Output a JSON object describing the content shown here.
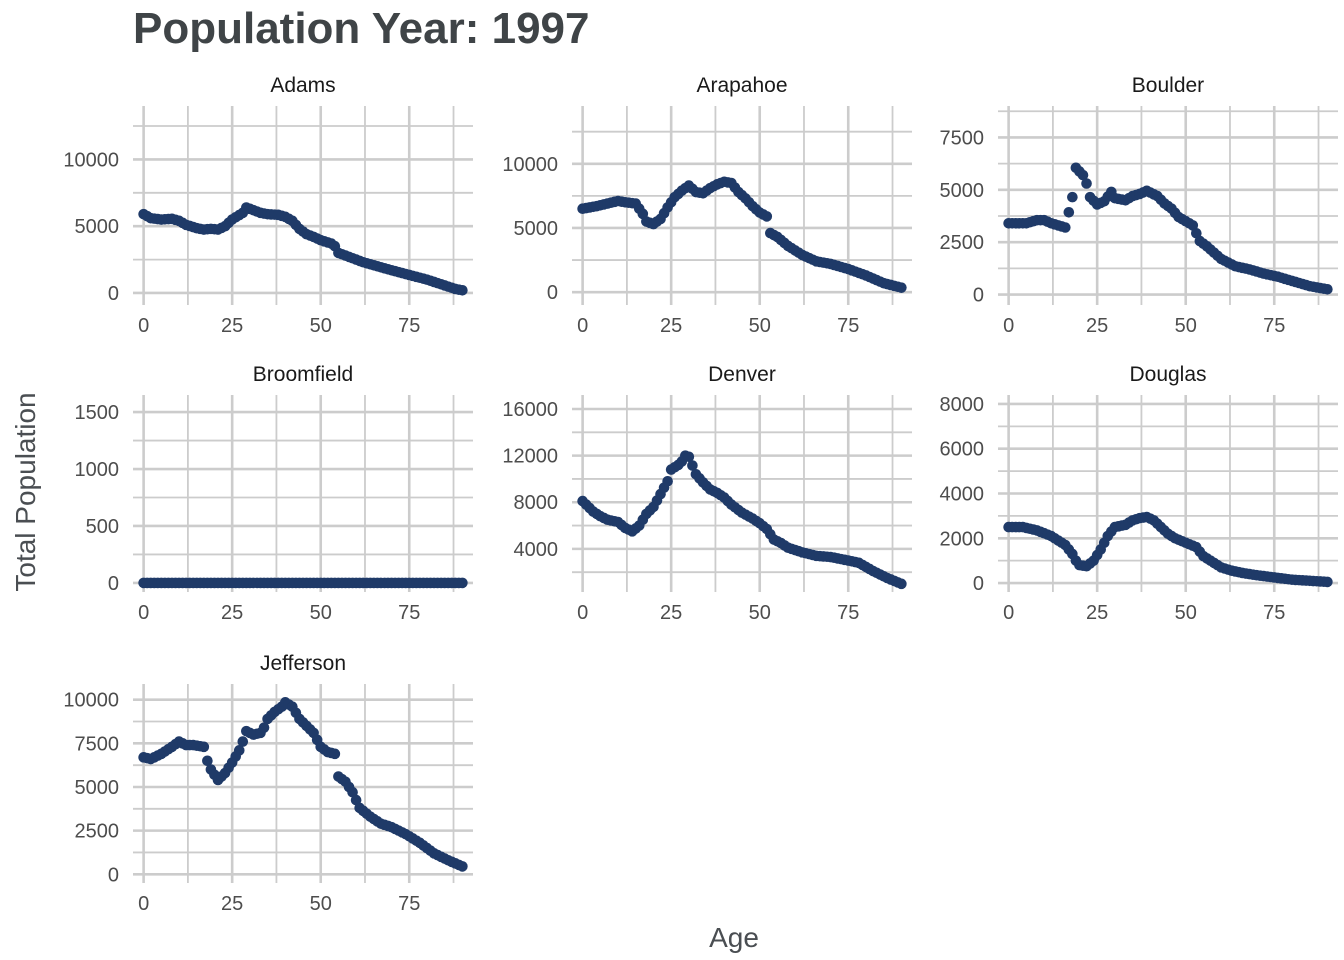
{
  "chart_data": {
    "type": "scatter",
    "title": "Population Year:  1997",
    "xlabel": "Age",
    "ylabel": "Total Population",
    "point_color": "#1f3a68",
    "grid_color": "#cccccc",
    "x_ticks": [
      "0",
      "25",
      "50",
      "75"
    ],
    "xlim": [
      -3,
      93
    ],
    "panels": [
      {
        "name": "Adams",
        "ylim": [
          -900,
          14000
        ],
        "y_ticks": [
          0,
          5000,
          10000
        ],
        "y_tick_labels": [
          "0",
          "5000",
          "10000"
        ],
        "keypoints": [
          [
            0,
            5900
          ],
          [
            2,
            5600
          ],
          [
            5,
            5500
          ],
          [
            8,
            5550
          ],
          [
            10,
            5400
          ],
          [
            12,
            5100
          ],
          [
            15,
            4850
          ],
          [
            17,
            4750
          ],
          [
            19,
            4800
          ],
          [
            21,
            4750
          ],
          [
            23,
            5000
          ],
          [
            25,
            5500
          ],
          [
            28,
            6000
          ],
          [
            29,
            6400
          ],
          [
            31,
            6200
          ],
          [
            33,
            6000
          ],
          [
            35,
            5900
          ],
          [
            38,
            5850
          ],
          [
            40,
            5700
          ],
          [
            42,
            5400
          ],
          [
            44,
            4800
          ],
          [
            46,
            4400
          ],
          [
            48,
            4200
          ],
          [
            50,
            3950
          ],
          [
            53,
            3700
          ],
          [
            54,
            3500
          ],
          [
            55,
            3000
          ],
          [
            58,
            2700
          ],
          [
            62,
            2300
          ],
          [
            66,
            2000
          ],
          [
            70,
            1700
          ],
          [
            75,
            1350
          ],
          [
            80,
            1000
          ],
          [
            84,
            650
          ],
          [
            88,
            300
          ],
          [
            90,
            200
          ]
        ]
      },
      {
        "name": "Arapahoe",
        "ylim": [
          -1000,
          14500
        ],
        "y_ticks": [
          0,
          5000,
          10000
        ],
        "y_tick_labels": [
          "0",
          "5000",
          "10000"
        ],
        "keypoints": [
          [
            0,
            6500
          ],
          [
            4,
            6700
          ],
          [
            7,
            6900
          ],
          [
            10,
            7100
          ],
          [
            12,
            7000
          ],
          [
            15,
            6900
          ],
          [
            16,
            6500
          ],
          [
            17,
            6100
          ],
          [
            18,
            5500
          ],
          [
            20,
            5300
          ],
          [
            22,
            5700
          ],
          [
            24,
            6600
          ],
          [
            26,
            7400
          ],
          [
            28,
            7900
          ],
          [
            30,
            8300
          ],
          [
            32,
            7800
          ],
          [
            34,
            7700
          ],
          [
            36,
            8100
          ],
          [
            38,
            8400
          ],
          [
            40,
            8600
          ],
          [
            42,
            8500
          ],
          [
            44,
            7800
          ],
          [
            46,
            7300
          ],
          [
            48,
            6700
          ],
          [
            50,
            6200
          ],
          [
            52,
            5900
          ],
          [
            53,
            4600
          ],
          [
            55,
            4300
          ],
          [
            58,
            3600
          ],
          [
            62,
            2900
          ],
          [
            66,
            2400
          ],
          [
            70,
            2200
          ],
          [
            75,
            1800
          ],
          [
            80,
            1300
          ],
          [
            85,
            700
          ],
          [
            90,
            350
          ]
        ]
      },
      {
        "name": "Boulder",
        "ylim": [
          -500,
          9000
        ],
        "y_ticks": [
          0,
          2500,
          5000,
          7500
        ],
        "y_tick_labels": [
          "0",
          "2500",
          "5000",
          "7500"
        ],
        "keypoints": [
          [
            0,
            3400
          ],
          [
            5,
            3400
          ],
          [
            8,
            3550
          ],
          [
            10,
            3550
          ],
          [
            12,
            3400
          ],
          [
            14,
            3300
          ],
          [
            16,
            3200
          ],
          [
            18,
            4650
          ],
          [
            19,
            6050
          ],
          [
            21,
            5700
          ],
          [
            22,
            5300
          ],
          [
            23,
            4650
          ],
          [
            25,
            4300
          ],
          [
            27,
            4450
          ],
          [
            29,
            4900
          ],
          [
            30,
            4600
          ],
          [
            33,
            4500
          ],
          [
            35,
            4700
          ],
          [
            37,
            4800
          ],
          [
            39,
            4950
          ],
          [
            42,
            4700
          ],
          [
            44,
            4350
          ],
          [
            46,
            4100
          ],
          [
            48,
            3700
          ],
          [
            50,
            3500
          ],
          [
            52,
            3300
          ],
          [
            54,
            2550
          ],
          [
            56,
            2300
          ],
          [
            58,
            2000
          ],
          [
            60,
            1700
          ],
          [
            64,
            1350
          ],
          [
            68,
            1200
          ],
          [
            72,
            1000
          ],
          [
            76,
            850
          ],
          [
            80,
            650
          ],
          [
            85,
            400
          ],
          [
            90,
            250
          ]
        ]
      },
      {
        "name": "Broomfield",
        "ylim": [
          -80,
          1650
        ],
        "y_ticks": [
          0,
          500,
          1000,
          1500
        ],
        "y_tick_labels": [
          "0",
          "500",
          "1000",
          "1500"
        ],
        "keypoints": [
          [
            0,
            0
          ],
          [
            90,
            0
          ]
        ]
      },
      {
        "name": "Denver",
        "ylim": [
          300,
          17200
        ],
        "y_ticks": [
          4000,
          8000,
          12000,
          16000
        ],
        "y_tick_labels": [
          "4000",
          "8000",
          "12000",
          "16000"
        ],
        "keypoints": [
          [
            0,
            8100
          ],
          [
            3,
            7200
          ],
          [
            5,
            6800
          ],
          [
            7,
            6500
          ],
          [
            10,
            6300
          ],
          [
            12,
            5800
          ],
          [
            14,
            5500
          ],
          [
            16,
            6000
          ],
          [
            18,
            7000
          ],
          [
            20,
            7600
          ],
          [
            22,
            8700
          ],
          [
            24,
            9800
          ],
          [
            25,
            10800
          ],
          [
            27,
            11200
          ],
          [
            28,
            11500
          ],
          [
            29,
            12000
          ],
          [
            30,
            11900
          ],
          [
            32,
            10400
          ],
          [
            34,
            9700
          ],
          [
            36,
            9100
          ],
          [
            38,
            8800
          ],
          [
            40,
            8400
          ],
          [
            42,
            7800
          ],
          [
            45,
            7100
          ],
          [
            48,
            6600
          ],
          [
            50,
            6200
          ],
          [
            52,
            5700
          ],
          [
            54,
            4800
          ],
          [
            56,
            4500
          ],
          [
            58,
            4100
          ],
          [
            62,
            3700
          ],
          [
            66,
            3400
          ],
          [
            70,
            3300
          ],
          [
            75,
            3000
          ],
          [
            78,
            2800
          ],
          [
            82,
            2100
          ],
          [
            86,
            1500
          ],
          [
            90,
            1000
          ]
        ]
      },
      {
        "name": "Douglas",
        "ylim": [
          -400,
          8400
        ],
        "y_ticks": [
          0,
          2000,
          4000,
          6000,
          8000
        ],
        "y_tick_labels": [
          "0",
          "2000",
          "4000",
          "6000",
          "8000"
        ],
        "keypoints": [
          [
            0,
            2500
          ],
          [
            4,
            2500
          ],
          [
            8,
            2350
          ],
          [
            12,
            2100
          ],
          [
            16,
            1700
          ],
          [
            18,
            1300
          ],
          [
            19,
            1000
          ],
          [
            20,
            800
          ],
          [
            22,
            750
          ],
          [
            24,
            1000
          ],
          [
            26,
            1500
          ],
          [
            28,
            2100
          ],
          [
            30,
            2500
          ],
          [
            33,
            2600
          ],
          [
            35,
            2800
          ],
          [
            37,
            2900
          ],
          [
            39,
            2950
          ],
          [
            41,
            2800
          ],
          [
            43,
            2500
          ],
          [
            45,
            2200
          ],
          [
            47,
            2000
          ],
          [
            50,
            1800
          ],
          [
            53,
            1600
          ],
          [
            55,
            1200
          ],
          [
            57,
            1000
          ],
          [
            60,
            700
          ],
          [
            63,
            550
          ],
          [
            66,
            450
          ],
          [
            70,
            350
          ],
          [
            75,
            250
          ],
          [
            80,
            150
          ],
          [
            85,
            100
          ],
          [
            90,
            50
          ]
        ]
      },
      {
        "name": "Jefferson",
        "ylim": [
          -500,
          10900
        ],
        "y_ticks": [
          0,
          2500,
          5000,
          7500,
          10000
        ],
        "y_tick_labels": [
          "0",
          "2500",
          "5000",
          "7500",
          "10000"
        ],
        "keypoints": [
          [
            0,
            6700
          ],
          [
            2,
            6600
          ],
          [
            5,
            6900
          ],
          [
            8,
            7300
          ],
          [
            10,
            7600
          ],
          [
            12,
            7400
          ],
          [
            14,
            7400
          ],
          [
            17,
            7300
          ],
          [
            18,
            6500
          ],
          [
            19,
            6000
          ],
          [
            20,
            5700
          ],
          [
            21,
            5400
          ],
          [
            23,
            5800
          ],
          [
            25,
            6400
          ],
          [
            27,
            7100
          ],
          [
            28,
            7600
          ],
          [
            29,
            8200
          ],
          [
            31,
            8000
          ],
          [
            33,
            8100
          ],
          [
            34,
            8400
          ],
          [
            35,
            8900
          ],
          [
            37,
            9300
          ],
          [
            39,
            9600
          ],
          [
            40,
            9850
          ],
          [
            42,
            9600
          ],
          [
            44,
            8900
          ],
          [
            46,
            8500
          ],
          [
            48,
            8100
          ],
          [
            50,
            7300
          ],
          [
            52,
            7000
          ],
          [
            54,
            6900
          ],
          [
            55,
            5600
          ],
          [
            57,
            5300
          ],
          [
            59,
            4700
          ],
          [
            61,
            3800
          ],
          [
            64,
            3300
          ],
          [
            67,
            2900
          ],
          [
            70,
            2700
          ],
          [
            74,
            2300
          ],
          [
            78,
            1800
          ],
          [
            82,
            1200
          ],
          [
            86,
            800
          ],
          [
            90,
            450
          ]
        ]
      }
    ]
  }
}
